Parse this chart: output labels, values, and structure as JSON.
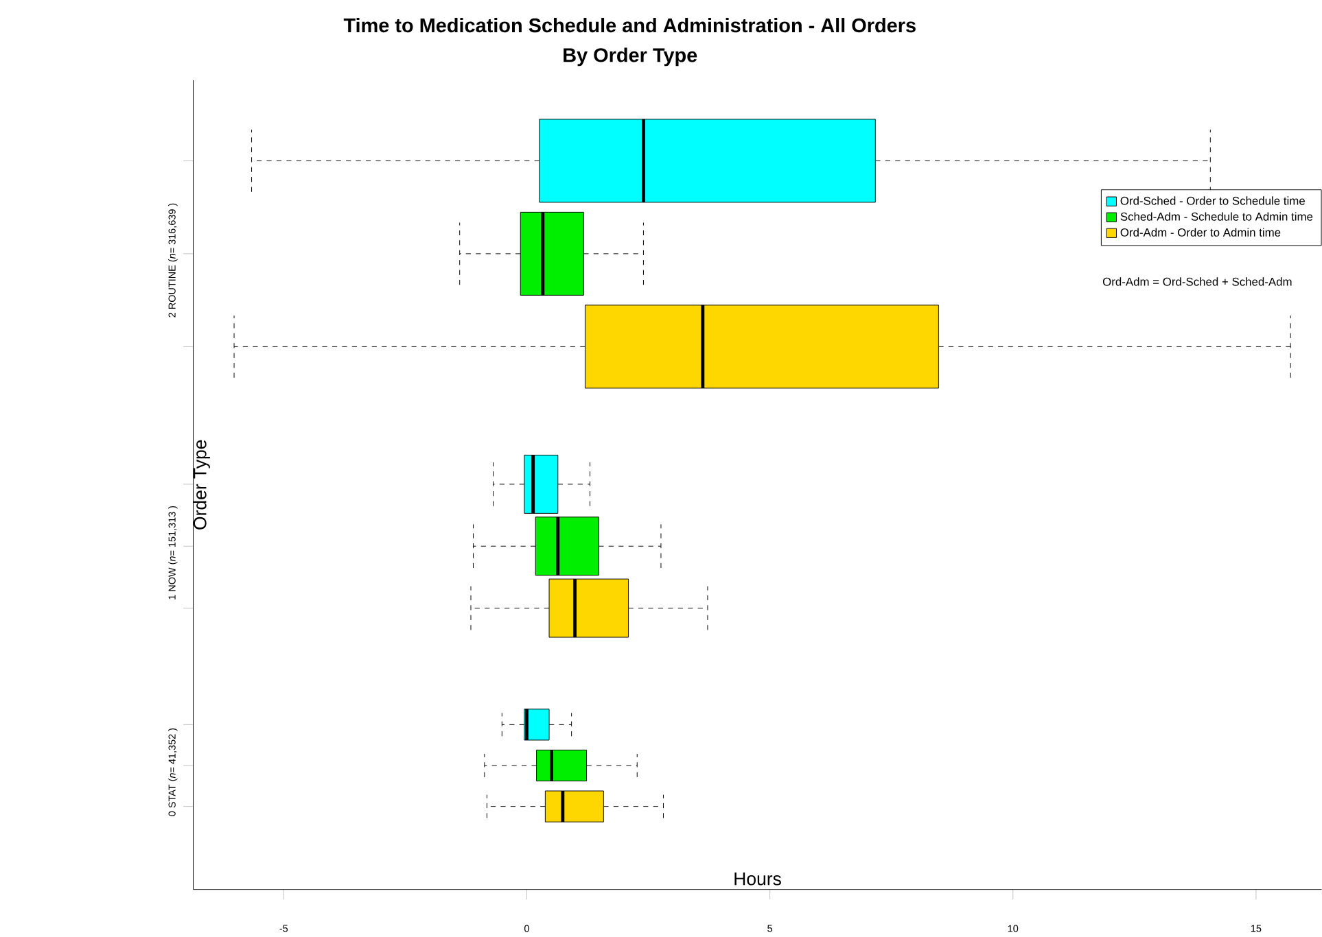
{
  "chart_data": {
    "type": "box",
    "title": "Time to Medication Schedule and Administration - All Orders",
    "subtitle": "By Order Type",
    "xlabel": "Hours",
    "ylabel": "Order Type",
    "orientation": "horizontal",
    "categories": [
      "2 ROUTINE (*n*= 316,639 )",
      "1 NOW (*n*= 151,313 )",
      "0 STAT (*n*= 41,352 )"
    ],
    "xlim": [
      -6.86,
      16.35
    ],
    "xticks": [
      -5,
      0,
      5,
      10,
      15
    ],
    "legend": "top right",
    "annotations": [
      "Ord-Adm = Ord-Sched + Sched-Adm"
    ],
    "series": [
      {
        "name": "Ord-Sched  - Order to Schedule time",
        "color": "#00ffff",
        "boxes": [
          {
            "low": -5.66,
            "q1": 0.26,
            "median": 2.4,
            "q3": 7.17,
            "high": 14.06
          },
          {
            "low": -0.69,
            "q1": -0.05,
            "median": 0.13,
            "q3": 0.64,
            "high": 1.3
          },
          {
            "low": -0.51,
            "q1": -0.05,
            "median": 0.0,
            "q3": 0.46,
            "high": 0.92
          }
        ]
      },
      {
        "name": "Sched-Adm - Schedule to Admin time",
        "color": "#00ee00",
        "boxes": [
          {
            "low": -1.38,
            "q1": -0.13,
            "median": 0.33,
            "q3": 1.17,
            "high": 2.4
          },
          {
            "low": -1.1,
            "q1": 0.18,
            "median": 0.64,
            "q3": 1.48,
            "high": 2.76
          },
          {
            "low": -0.87,
            "q1": 0.2,
            "median": 0.51,
            "q3": 1.23,
            "high": 2.27
          }
        ]
      },
      {
        "name": "Ord-Adm     - Order to Admin time",
        "color": "#ffd700",
        "boxes": [
          {
            "low": -6.02,
            "q1": 1.2,
            "median": 3.62,
            "q3": 8.47,
            "high": 15.71
          },
          {
            "low": -1.15,
            "q1": 0.46,
            "median": 0.99,
            "q3": 2.09,
            "high": 3.72
          },
          {
            "low": -0.82,
            "q1": 0.38,
            "median": 0.74,
            "q3": 1.58,
            "high": 2.81
          }
        ]
      }
    ]
  }
}
